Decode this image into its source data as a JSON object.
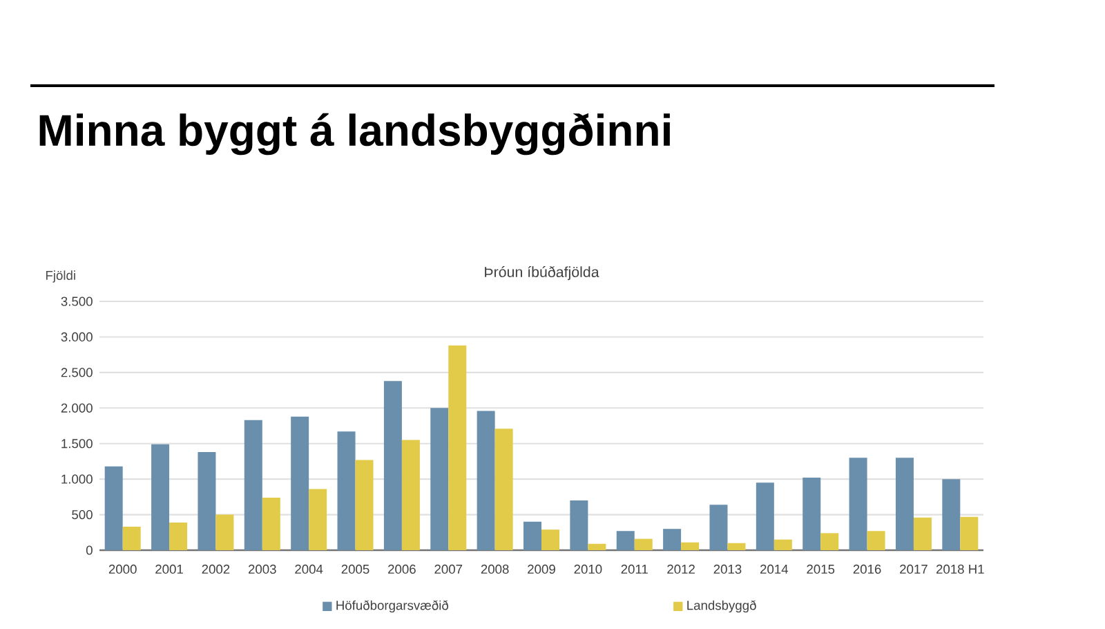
{
  "chart_data": {
    "type": "bar",
    "title": "Minna byggt á landsbyggðinni",
    "subtitle": "Þróun íbúðafjölda",
    "ylabel": "Fjöldi",
    "categories": [
      "2000",
      "2001",
      "2002",
      "2003",
      "2004",
      "2005",
      "2006",
      "2007",
      "2008",
      "2009",
      "2010",
      "2011",
      "2012",
      "2013",
      "2014",
      "2015",
      "2016",
      "2017",
      "2018 H1"
    ],
    "series": [
      {
        "name": "Höfuðborgarsvæðið",
        "color": "#6a8fad",
        "values": [
          1180,
          1490,
          1380,
          1830,
          1880,
          1670,
          2380,
          2000,
          1960,
          400,
          700,
          270,
          300,
          640,
          950,
          1020,
          1300,
          1300,
          1000
        ]
      },
      {
        "name": "Landsbyggð",
        "color": "#e3cb4a",
        "values": [
          330,
          390,
          500,
          740,
          860,
          1270,
          1550,
          2880,
          1710,
          290,
          90,
          160,
          110,
          100,
          150,
          240,
          270,
          460,
          470
        ]
      }
    ],
    "ylim": [
      0,
      3500
    ],
    "yticks": [
      {
        "value": 0,
        "label": "0"
      },
      {
        "value": 500,
        "label": "500"
      },
      {
        "value": 1000,
        "label": "1.000"
      },
      {
        "value": 1500,
        "label": "1.500"
      },
      {
        "value": 2000,
        "label": "2.000"
      },
      {
        "value": 2500,
        "label": "2.500"
      },
      {
        "value": 3000,
        "label": "3.000"
      },
      {
        "value": 3500,
        "label": "3.500"
      }
    ],
    "grid": "y",
    "legend": "bottom"
  }
}
